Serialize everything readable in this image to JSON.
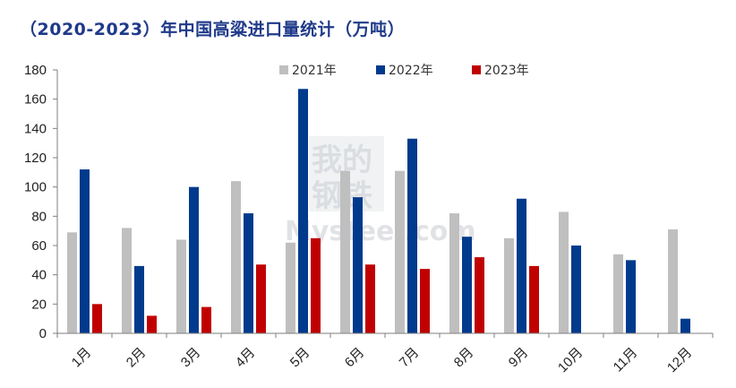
{
  "chart_data": {
    "type": "bar",
    "title": "（2020-2023）年中国高粱进口量统计（万吨）",
    "categories": [
      "1月",
      "2月",
      "3月",
      "4月",
      "5月",
      "6月",
      "7月",
      "8月",
      "9月",
      "10月",
      "11月",
      "12月"
    ],
    "series": [
      {
        "name": "2021年",
        "color": "#bfbfbf",
        "values": [
          69,
          72,
          64,
          104,
          62,
          111,
          111,
          82,
          65,
          83,
          54,
          71
        ]
      },
      {
        "name": "2022年",
        "color": "#003a8c",
        "values": [
          112,
          46,
          100,
          82,
          167,
          93,
          133,
          66,
          92,
          60,
          50,
          10
        ]
      },
      {
        "name": "2023年",
        "color": "#c00000",
        "values": [
          20,
          12,
          18,
          47,
          65,
          47,
          44,
          52,
          46,
          null,
          null,
          null
        ]
      }
    ],
    "ylim": [
      0,
      180
    ],
    "yticks": [
      0,
      20,
      40,
      60,
      80,
      100,
      120,
      140,
      160,
      180
    ],
    "legend_position": "top",
    "grid": false
  },
  "watermark": {
    "line1": "我的",
    "line2": "钢铁",
    "brand": "Mysteel.com"
  }
}
